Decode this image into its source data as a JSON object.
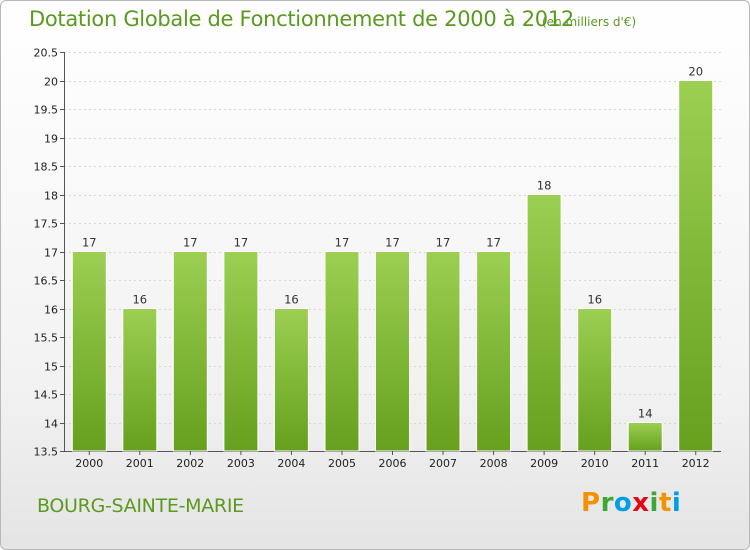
{
  "header": {
    "title": "Dotation Globale de Fonctionnement de 2000 à 2012",
    "subtitle": "(en milliers d'€)"
  },
  "footer": {
    "commune": "BOURG-SAINTE-MARIE",
    "logo_letters": [
      "P",
      "r",
      "o",
      "x",
      "i",
      "t",
      "i"
    ]
  },
  "colors": {
    "bar": "#8cc63f",
    "bar_dark": "#6aa321",
    "text_accent": "#5a9a1e",
    "logo": [
      "#f39200",
      "#3aaa35",
      "#009fe3",
      "#e30613",
      "#3aaa35",
      "#f39200",
      "#009fe3"
    ]
  },
  "chart_data": {
    "type": "bar",
    "title": "Dotation Globale de Fonctionnement de 2000 à 2012",
    "subtitle": "(en milliers d'€)",
    "categories": [
      "2000",
      "2001",
      "2002",
      "2003",
      "2004",
      "2005",
      "2006",
      "2007",
      "2008",
      "2009",
      "2010",
      "2011",
      "2012"
    ],
    "values": [
      17,
      16,
      17,
      17,
      16,
      17,
      17,
      17,
      17,
      18,
      16,
      14,
      20
    ],
    "value_labels": [
      "17",
      "16",
      "17",
      "17",
      "16",
      "17",
      "17",
      "17",
      "17",
      "18",
      "16",
      "14",
      "20"
    ],
    "ylim": [
      13.5,
      20.5
    ],
    "yticks": [
      "13.5",
      "14",
      "14.5",
      "15",
      "15.5",
      "16",
      "16.5",
      "17",
      "17.5",
      "18",
      "18.5",
      "19",
      "19.5",
      "20",
      "20.5"
    ],
    "grid": true,
    "legend": "none"
  }
}
